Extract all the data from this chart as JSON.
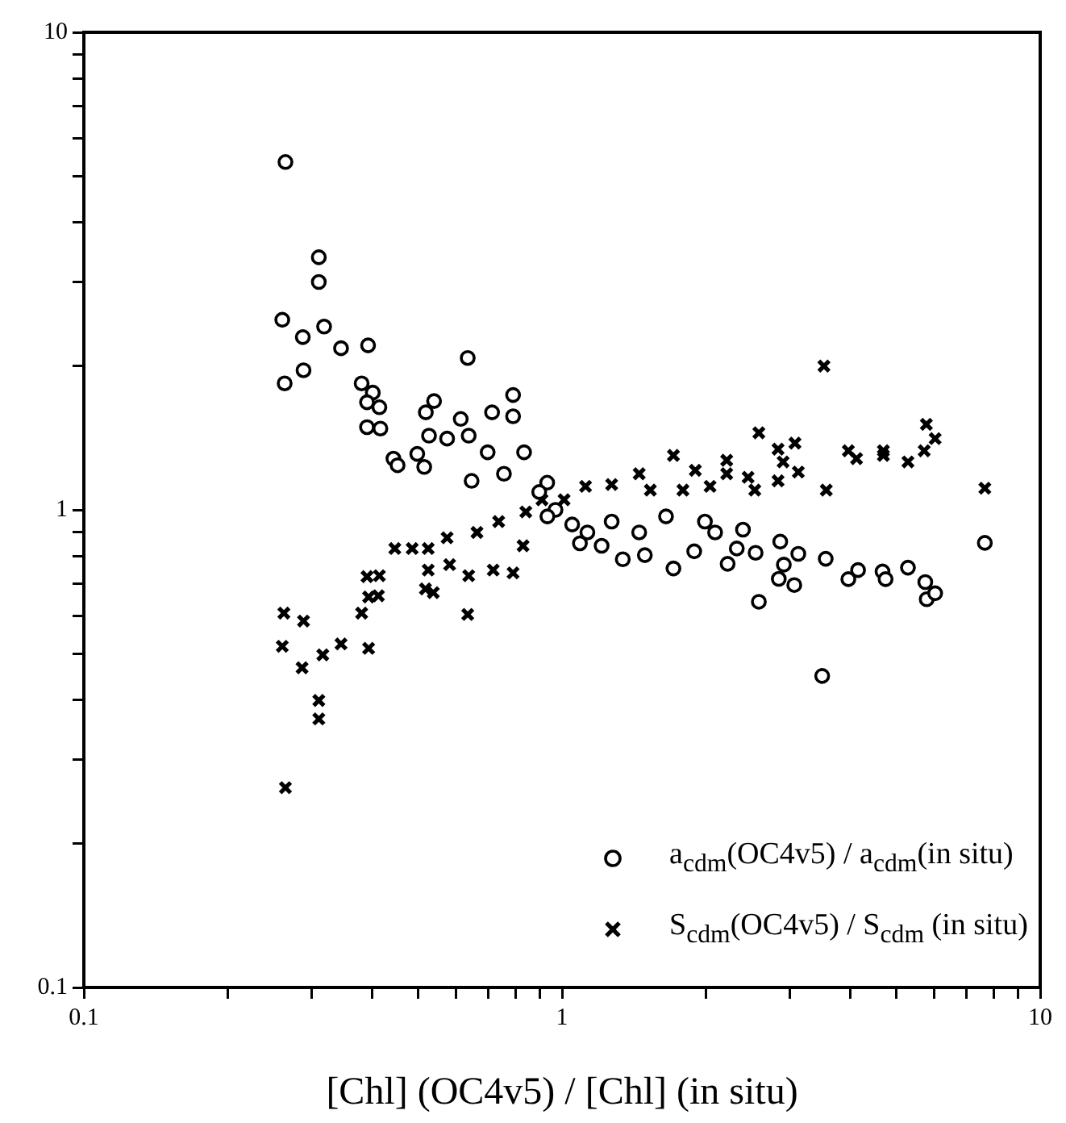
{
  "chart_data": {
    "type": "scatter",
    "xlabel": "[Chl] (OC4v5) / [Chl] (in situ)",
    "log": "xy",
    "xlim": [
      0.1,
      10
    ],
    "ylim": [
      0.1,
      10
    ],
    "xticks": [
      0.1,
      {
        "value": 0.2,
        "label": null
      },
      {
        "value": 0.3,
        "label": null
      },
      {
        "value": 0.4,
        "label": null
      },
      {
        "value": 0.5,
        "label": null
      },
      {
        "value": 0.6,
        "label": null
      },
      {
        "value": 0.7,
        "label": null
      },
      {
        "value": 0.8,
        "label": null
      },
      {
        "value": 0.9,
        "label": null
      },
      1,
      {
        "value": 2,
        "label": null
      },
      {
        "value": 3,
        "label": null
      },
      {
        "value": 4,
        "label": null
      },
      {
        "value": 5,
        "label": null
      },
      {
        "value": 6,
        "label": null
      },
      {
        "value": 7,
        "label": null
      },
      {
        "value": 8,
        "label": null
      },
      {
        "value": 9,
        "label": null
      },
      10
    ],
    "yticks": [
      0.1,
      {
        "value": 0.2,
        "label": null
      },
      {
        "value": 0.3,
        "label": null
      },
      {
        "value": 0.4,
        "label": null
      },
      {
        "value": 0.5,
        "label": null
      },
      {
        "value": 0.6,
        "label": null
      },
      {
        "value": 0.7,
        "label": null
      },
      {
        "value": 0.8,
        "label": null
      },
      {
        "value": 0.9,
        "label": null
      },
      1,
      {
        "value": 2,
        "label": null
      },
      {
        "value": 3,
        "label": null
      },
      {
        "value": 4,
        "label": null
      },
      {
        "value": 5,
        "label": null
      },
      {
        "value": 6,
        "label": null
      },
      {
        "value": 7,
        "label": null
      },
      {
        "value": 8,
        "label": null
      },
      {
        "value": 9,
        "label": null
      },
      10
    ],
    "grid": false,
    "legend": "bottom right",
    "series": [
      {
        "name": "a$_{cdm}$(OC4v5) / a$_{cdm}$(in situ)",
        "color": "#000000",
        "marker": "circle",
        "x": [
          0.264,
          0.31,
          0.31,
          0.26,
          0.287,
          0.318,
          0.345,
          0.393,
          0.288,
          0.263,
          0.381,
          0.402,
          0.391,
          0.415,
          0.391,
          0.417,
          0.635,
          0.54,
          0.519,
          0.79,
          0.79,
          0.714,
          0.614,
          0.444,
          0.453,
          0.498,
          0.527,
          0.575,
          0.638,
          0.699,
          0.833,
          0.931,
          0.756,
          0.647,
          0.515,
          7.66,
          3.5,
          2.58,
          3.56,
          3.12,
          2.86,
          2.91,
          2.84,
          3.06,
          3.97,
          4.16,
          4.68,
          4.75,
          5.29,
          5.75,
          5.79,
          6.03,
          2.39,
          2.54,
          2.32,
          2.22,
          2.09,
          1.89,
          1.71,
          1.49,
          1.34,
          1.21,
          1.09,
          1.65,
          1.45,
          1.27,
          1.99,
          0.896,
          0.969,
          1.05,
          1.13,
          0.932
        ],
        "values": [
          5.35,
          3.38,
          3.0,
          2.5,
          2.3,
          2.42,
          2.18,
          2.21,
          1.96,
          1.84,
          1.84,
          1.76,
          1.68,
          1.64,
          1.49,
          1.48,
          2.08,
          1.69,
          1.6,
          1.74,
          1.57,
          1.6,
          1.55,
          1.28,
          1.24,
          1.31,
          1.43,
          1.41,
          1.43,
          1.32,
          1.32,
          1.14,
          1.19,
          1.15,
          1.23,
          0.853,
          0.449,
          0.642,
          0.79,
          0.809,
          0.858,
          0.768,
          0.717,
          0.696,
          0.716,
          0.748,
          0.743,
          0.716,
          0.757,
          0.706,
          0.65,
          0.669,
          0.909,
          0.813,
          0.83,
          0.771,
          0.897,
          0.819,
          0.754,
          0.804,
          0.788,
          0.841,
          0.851,
          0.969,
          0.897,
          0.945,
          0.945,
          1.09,
          1.0,
          0.932,
          0.897,
          0.969
        ]
      },
      {
        "name": "S$_{cdm}$(OC4v5) / S$_{cdm}$ (in situ)",
        "color": "#000000",
        "marker": "cross",
        "x": [
          2.58,
          5.78,
          6.03,
          5.72,
          5.29,
          4.7,
          4.7,
          3.97,
          4.13,
          3.57,
          3.07,
          2.83,
          2.9,
          3.12,
          2.83,
          7.66,
          2.53,
          2.45,
          2.21,
          2.21,
          1.9,
          1.71,
          2.04,
          1.79,
          1.45,
          1.27,
          1.12,
          1.53,
          1.01,
          3.53,
          0.264,
          0.31,
          0.31,
          0.26,
          0.286,
          0.316,
          0.345,
          0.394,
          0.262,
          0.288,
          0.381,
          0.394,
          0.413,
          0.391,
          0.415,
          0.635,
          0.518,
          0.538,
          0.447,
          0.486,
          0.525,
          0.575,
          0.525,
          0.638,
          0.718,
          0.79,
          0.664,
          0.737,
          0.84,
          0.908,
          0.829,
          0.582
        ],
        "values": [
          1.45,
          1.51,
          1.41,
          1.33,
          1.26,
          1.33,
          1.3,
          1.33,
          1.28,
          1.1,
          1.38,
          1.34,
          1.26,
          1.2,
          1.15,
          1.11,
          1.1,
          1.17,
          1.27,
          1.19,
          1.21,
          1.3,
          1.12,
          1.1,
          1.19,
          1.13,
          1.12,
          1.1,
          1.05,
          2.0,
          0.262,
          0.399,
          0.365,
          0.518,
          0.467,
          0.497,
          0.524,
          0.513,
          0.608,
          0.585,
          0.608,
          0.657,
          0.661,
          0.725,
          0.728,
          0.604,
          0.683,
          0.671,
          0.83,
          0.83,
          0.83,
          0.874,
          0.748,
          0.728,
          0.748,
          0.738,
          0.897,
          0.945,
          0.99,
          1.05,
          0.841,
          0.768
        ]
      }
    ]
  }
}
